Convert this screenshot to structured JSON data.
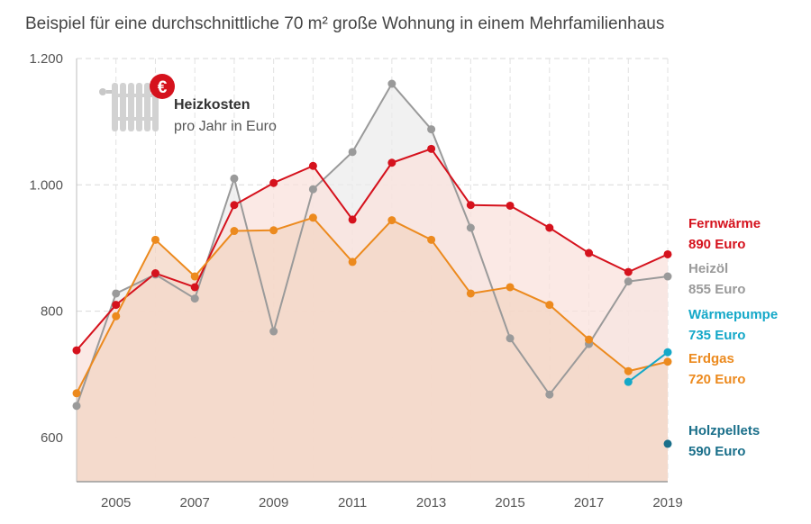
{
  "chart_data": {
    "type": "line",
    "title": "Beispiel für eine durchschnittliche 70 m² große Wohnung in einem Mehrfamilienhaus",
    "annotation": {
      "title": "Heizkosten",
      "subtitle": "pro Jahr in Euro",
      "icon": "radiator-euro-icon"
    },
    "xlim": [
      2004,
      2019
    ],
    "ylim": [
      530,
      1200
    ],
    "x_ticks": [
      2005,
      2007,
      2009,
      2011,
      2013,
      2015,
      2017,
      2019
    ],
    "y_ticks": [
      {
        "value": 600,
        "label": "600"
      },
      {
        "value": 800,
        "label": "800"
      },
      {
        "value": 1000,
        "label": "1.000"
      },
      {
        "value": 1200,
        "label": "1.200"
      }
    ],
    "grid": true,
    "series": [
      {
        "key": "heizoel",
        "name": "Heizöl",
        "end_label": "855 Euro",
        "color": "#9a9a9a",
        "fill": "#ececec",
        "x": [
          2004,
          2005,
          2006,
          2007,
          2008,
          2009,
          2010,
          2011,
          2012,
          2013,
          2014,
          2015,
          2016,
          2017,
          2018,
          2019
        ],
        "values": [
          650,
          828,
          858,
          820,
          1010,
          768,
          993,
          1052,
          1160,
          1088,
          932,
          757,
          668,
          748,
          847,
          855
        ]
      },
      {
        "key": "fernwaerme",
        "name": "Fernwärme",
        "end_label": "890 Euro",
        "color": "#d5121d",
        "fill": "#f9e1dc",
        "x": [
          2004,
          2005,
          2006,
          2007,
          2008,
          2009,
          2010,
          2011,
          2012,
          2013,
          2014,
          2015,
          2016,
          2017,
          2018,
          2019
        ],
        "values": [
          738,
          810,
          860,
          838,
          968,
          1003,
          1030,
          945,
          1035,
          1057,
          968,
          967,
          932,
          892,
          862,
          890
        ]
      },
      {
        "key": "erdgas",
        "name": "Erdgas",
        "end_label": "720 Euro",
        "color": "#ec8a1e",
        "fill": "#f3d6c4",
        "x": [
          2004,
          2005,
          2006,
          2007,
          2008,
          2009,
          2010,
          2011,
          2012,
          2013,
          2014,
          2015,
          2016,
          2017,
          2018,
          2019
        ],
        "values": [
          670,
          792,
          913,
          855,
          927,
          928,
          948,
          878,
          944,
          913,
          828,
          838,
          810,
          755,
          705,
          720
        ]
      },
      {
        "key": "waermepumpe",
        "name": "Wärmepumpe",
        "end_label": "735 Euro",
        "color": "#14a8c8",
        "x": [
          2018,
          2019
        ],
        "values": [
          688,
          735
        ]
      },
      {
        "key": "holzpellets",
        "name": "Holzpellets",
        "end_label": "590 Euro",
        "color": "#1a6f8a",
        "x": [
          2019
        ],
        "values": [
          590
        ]
      }
    ]
  }
}
